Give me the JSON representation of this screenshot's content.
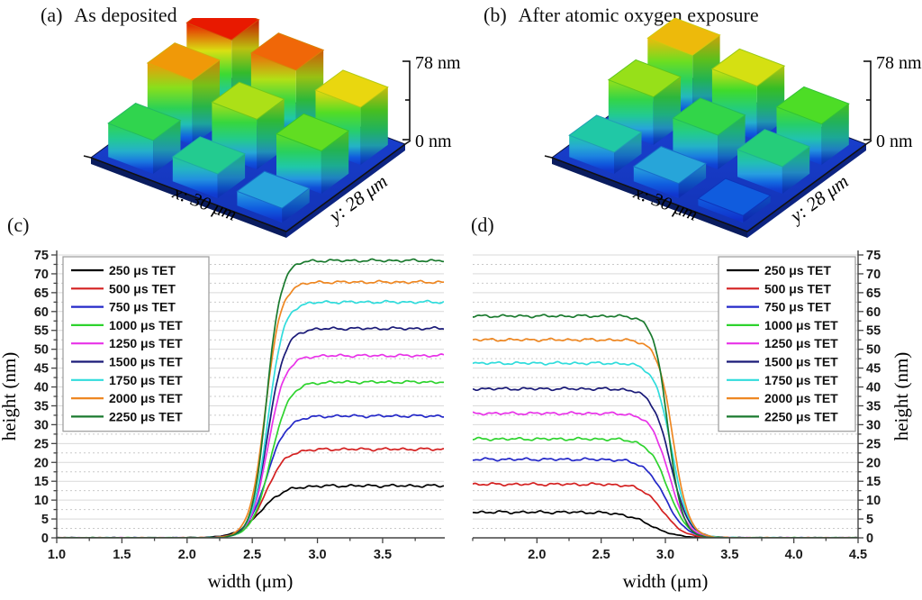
{
  "panels_3d": {
    "scale_top_label": "78 nm",
    "scale_bottom_label": "0 nm",
    "x_axis_label": "x: 30 μm",
    "y_axis_label": "y: 28 μm",
    "full_scale_nm": 78,
    "a": {
      "label": "(a)",
      "title": "As deposited",
      "pillar_heights_nm": [
        [
          32.3,
          62.5,
          73.5
        ],
        [
          23.5,
          48.3,
          67.8
        ],
        [
          13.8,
          41.3,
          55.5
        ]
      ]
    },
    "b": {
      "label": "(b)",
      "title": "After atomic oxygen exposure",
      "pillar_heights_nm": [
        [
          20.8,
          46.3,
          58.8
        ],
        [
          14.2,
          33.0,
          52.5
        ],
        [
          6.8,
          26.2,
          39.5
        ]
      ]
    }
  },
  "chart_data": [
    {
      "id": "c",
      "panel_label": "(c)",
      "type": "line",
      "xlabel": "width (μm)",
      "ylabel": "height (nm)",
      "xlim": [
        1.0,
        3.97
      ],
      "ylim": [
        0,
        75
      ],
      "x_major_ticks": [
        1.0,
        1.5,
        2.0,
        2.5,
        3.0,
        3.5
      ],
      "x_tick_labels": [
        "1.0",
        "1.5",
        "2.0",
        "2.5",
        "3.0",
        "3.5"
      ],
      "x_minor_step": 0.25,
      "y_major_ticks": [
        0,
        5,
        10,
        15,
        20,
        25,
        30,
        35,
        40,
        45,
        50,
        55,
        60,
        65,
        70,
        75
      ],
      "y_minor_step": 2.5,
      "grid": "horizontal, solid every 5 nm, dotted every 2.5 nm",
      "y_axis_side": "left",
      "legend_position": "top-left",
      "edge": "rising",
      "series": [
        {
          "name": "250 μs TET",
          "color": "#000000",
          "plateau_nm": 13.8,
          "edge_x": 2.56,
          "edge_w": 0.09
        },
        {
          "name": "500 μs TET",
          "color": "#d42020",
          "plateau_nm": 23.5,
          "edge_x": 2.6,
          "edge_w": 0.075
        },
        {
          "name": "750 μs TET",
          "color": "#2428c8",
          "plateau_nm": 32.3,
          "edge_x": 2.61,
          "edge_w": 0.075
        },
        {
          "name": "1000 μs TET",
          "color": "#2ed32e",
          "plateau_nm": 41.3,
          "edge_x": 2.64,
          "edge_w": 0.07
        },
        {
          "name": "1250 μs TET",
          "color": "#e832e8",
          "plateau_nm": 48.3,
          "edge_x": 2.62,
          "edge_w": 0.065
        },
        {
          "name": "1500 μs TET",
          "color": "#1a1a78",
          "plateau_nm": 55.5,
          "edge_x": 2.62,
          "edge_w": 0.065
        },
        {
          "name": "1750 μs TET",
          "color": "#30dcdc",
          "plateau_nm": 62.5,
          "edge_x": 2.62,
          "edge_w": 0.06
        },
        {
          "name": "2000 μs TET",
          "color": "#ee8722",
          "plateau_nm": 67.8,
          "edge_x": 2.6,
          "edge_w": 0.06
        },
        {
          "name": "2250 μs TET",
          "color": "#1a7a2e",
          "plateau_nm": 73.5,
          "edge_x": 2.61,
          "edge_w": 0.055
        }
      ]
    },
    {
      "id": "d",
      "panel_label": "(d)",
      "type": "line",
      "xlabel": "width (μm)",
      "ylabel": "height (nm)",
      "xlim": [
        1.5,
        4.5
      ],
      "ylim": [
        0,
        75
      ],
      "x_major_ticks": [
        2.0,
        2.5,
        3.0,
        3.5,
        4.0,
        4.5
      ],
      "x_tick_labels": [
        "2.0",
        "2.5",
        "3.0",
        "3.5",
        "4.0",
        "4.5"
      ],
      "x_minor_step": 0.25,
      "y_major_ticks": [
        0,
        5,
        10,
        15,
        20,
        25,
        30,
        35,
        40,
        45,
        50,
        55,
        60,
        65,
        70,
        75
      ],
      "y_minor_step": 2.5,
      "grid": "horizontal, solid every 5 nm, dotted every 2.5 nm",
      "y_axis_side": "right",
      "legend_position": "top-right",
      "edge": "falling",
      "series": [
        {
          "name": "250 μs TET",
          "color": "#000000",
          "plateau_nm": 6.8,
          "edge_x": 2.88,
          "edge_w": 0.1
        },
        {
          "name": "500 μs TET",
          "color": "#d42020",
          "plateau_nm": 14.2,
          "edge_x": 2.98,
          "edge_w": 0.08
        },
        {
          "name": "750 μs TET",
          "color": "#2428c8",
          "plateau_nm": 20.8,
          "edge_x": 3.0,
          "edge_w": 0.08
        },
        {
          "name": "1000 μs TET",
          "color": "#2ed32e",
          "plateau_nm": 26.2,
          "edge_x": 3.02,
          "edge_w": 0.075
        },
        {
          "name": "1250 μs TET",
          "color": "#e832e8",
          "plateau_nm": 33.0,
          "edge_x": 3.03,
          "edge_w": 0.07
        },
        {
          "name": "1500 μs TET",
          "color": "#1a1a78",
          "plateau_nm": 39.5,
          "edge_x": 3.04,
          "edge_w": 0.07
        },
        {
          "name": "1750 μs TET",
          "color": "#30dcdc",
          "plateau_nm": 46.3,
          "edge_x": 3.05,
          "edge_w": 0.065
        },
        {
          "name": "2000 μs TET",
          "color": "#ee8722",
          "plateau_nm": 52.5,
          "edge_x": 3.06,
          "edge_w": 0.06
        },
        {
          "name": "2250 μs TET",
          "color": "#1a7a2e",
          "plateau_nm": 58.8,
          "edge_x": 3.02,
          "edge_w": 0.055
        }
      ]
    }
  ]
}
